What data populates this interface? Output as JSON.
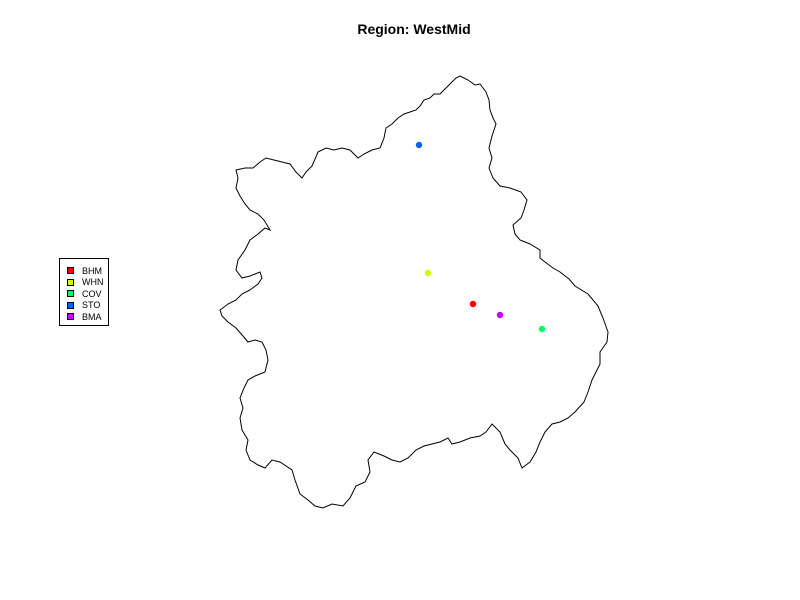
{
  "title": "Region: WestMid",
  "legend": {
    "items": [
      {
        "label": "BHM",
        "color": "#ff0000"
      },
      {
        "label": "WHN",
        "color": "#ccff00"
      },
      {
        "label": "COV",
        "color": "#00ff66"
      },
      {
        "label": "STO",
        "color": "#0066ff"
      },
      {
        "label": "BMA",
        "color": "#cc00ff"
      }
    ]
  },
  "points": [
    {
      "label": "BHM",
      "color": "#ff0000"
    },
    {
      "label": "WHN",
      "color": "#ccff00"
    },
    {
      "label": "COV",
      "color": "#00ff66"
    },
    {
      "label": "STO",
      "color": "#0066ff"
    },
    {
      "label": "BMA",
      "color": "#cc00ff"
    }
  ]
}
